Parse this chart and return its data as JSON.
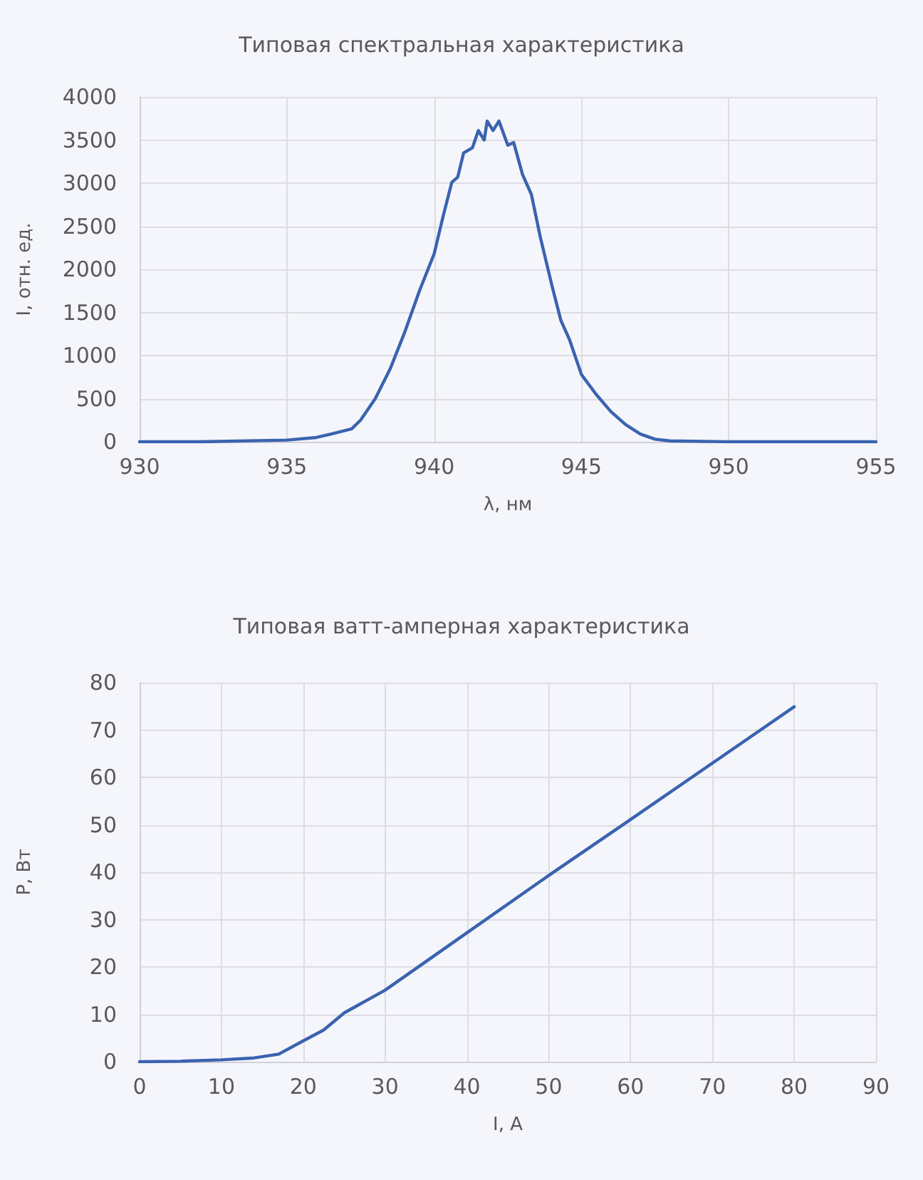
{
  "chart_data": [
    {
      "type": "line",
      "title": "Типовая спектральная характеристика",
      "xlabel": "λ, нм",
      "ylabel": "I, отн. ед.",
      "xlim": [
        930,
        955
      ],
      "xticks": [
        930,
        935,
        940,
        945,
        950,
        955
      ],
      "ylim": [
        0,
        4000
      ],
      "yticks": [
        0,
        500,
        1000,
        1500,
        2000,
        2500,
        3000,
        3500,
        4000
      ],
      "grid": true,
      "marker": "none",
      "line_style": "solid",
      "series": [
        {
          "color": "#3a63b0",
          "x": [
            930,
            932,
            935,
            936,
            936.5,
            937.2,
            937.5,
            938,
            938.5,
            939,
            939.5,
            940,
            940.3,
            940.6,
            940.8,
            941,
            941.3,
            941.5,
            941.7,
            941.8,
            942,
            942.2,
            942.5,
            942.7,
            943,
            943.3,
            943.6,
            944,
            944.3,
            944.6,
            945,
            945.5,
            946,
            946.5,
            947,
            947.5,
            948,
            950,
            952,
            955
          ],
          "values": [
            0,
            0,
            20,
            50,
            90,
            150,
            250,
            500,
            840,
            1270,
            1750,
            2180,
            2610,
            3010,
            3070,
            3350,
            3410,
            3610,
            3500,
            3720,
            3610,
            3720,
            3440,
            3470,
            3100,
            2870,
            2380,
            1810,
            1410,
            1180,
            780,
            550,
            350,
            200,
            90,
            30,
            10,
            0,
            0,
            0
          ]
        }
      ]
    },
    {
      "type": "line",
      "title": "Типовая ватт-амперная характеристика",
      "xlabel": "I, А",
      "ylabel": "P, Вт",
      "xlim": [
        0,
        90
      ],
      "xticks": [
        0,
        10,
        20,
        30,
        40,
        50,
        60,
        70,
        80,
        90
      ],
      "ylim": [
        0,
        80
      ],
      "yticks": [
        0,
        10,
        20,
        30,
        40,
        50,
        60,
        70,
        80
      ],
      "grid": true,
      "marker": "none",
      "line_style": "solid",
      "series": [
        {
          "color": "#3a63b0",
          "x": [
            0,
            5,
            10,
            14,
            17,
            20,
            22.5,
            25,
            30,
            40,
            50,
            60,
            70,
            80
          ],
          "values": [
            0,
            0.1,
            0.4,
            0.8,
            1.6,
            4.4,
            6.7,
            10.3,
            15.1,
            27.2,
            39.3,
            51.1,
            63,
            74.9
          ]
        }
      ]
    }
  ]
}
